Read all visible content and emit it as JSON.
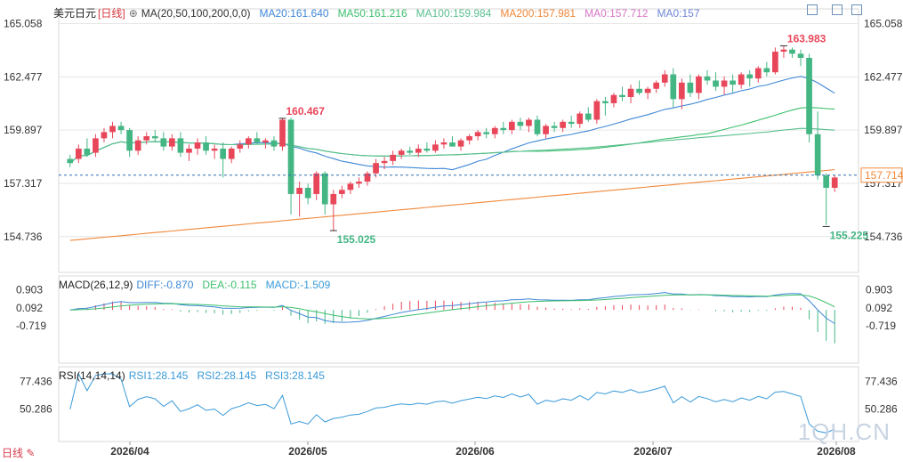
{
  "header": {
    "symbol": "美元日元",
    "period": "[日线]",
    "settings_glyph": "⊕",
    "ma_label": "MA(20,50,100,200,0,0)",
    "ma20": "MA20:161.640",
    "ma50": "MA50:161.216",
    "ma100": "MA100:159.984",
    "ma200": "MA200:157.981",
    "ma0a": "MA0:157.712",
    "ma0b": "MA0:157"
  },
  "macd_header": {
    "label": "MACD(26,12,9)",
    "diff": "DIFF:-0.870",
    "dea": "DEA:-0.115",
    "macd": "MACD:-1.509"
  },
  "rsi_header": {
    "label": "RSI(14,14,14)",
    "rsi1": "RSI1:28.145",
    "rsi2": "RSI2:28.145",
    "rsi3": "RSI3:28.145"
  },
  "timeframe_tab": "日线 ✎",
  "watermark": "1QH.CN",
  "colors": {
    "up": "#e8475a",
    "down": "#43b684",
    "ma20": "#3f88d6",
    "ma50": "#3cbf6d",
    "ma100": "#5bbf90",
    "ma200": "#f0883a",
    "rsi": "#3a9ad8",
    "diff": "#3f88d6",
    "dea": "#3cbf6d",
    "grid": "#e6e6e6",
    "axis_text": "#333333"
  },
  "chart_data": [
    {
      "type": "candlestick",
      "title": "美元日元 日线",
      "y_ticks": [
        165.058,
        162.477,
        159.897,
        157.317,
        154.736
      ],
      "ylim": [
        153.0,
        165.6
      ],
      "x_axis_labels": [
        "2026/04",
        "2026/05",
        "2026/06",
        "2026/07",
        "2026/08"
      ],
      "current_price": 157.714,
      "annotations": [
        {
          "text": "160.467",
          "value": 160.467
        },
        {
          "text": "163.983",
          "value": 163.983
        },
        {
          "text": "155.025",
          "value": 155.025
        },
        {
          "text": "155.225",
          "value": 155.225
        }
      ],
      "candles": [
        [
          158.5,
          158.7,
          158.1,
          158.3
        ],
        [
          158.5,
          159.2,
          158.3,
          159.0
        ],
        [
          159.0,
          159.5,
          158.6,
          158.7
        ],
        [
          158.8,
          159.7,
          158.6,
          159.5
        ],
        [
          159.5,
          160.0,
          159.3,
          159.8
        ],
        [
          159.8,
          160.3,
          159.5,
          160.1
        ],
        [
          160.1,
          160.3,
          159.7,
          159.9
        ],
        [
          159.9,
          160.0,
          158.6,
          158.9
        ],
        [
          158.9,
          159.6,
          158.7,
          159.4
        ],
        [
          159.4,
          159.8,
          159.2,
          159.6
        ],
        [
          159.6,
          159.9,
          159.3,
          159.5
        ],
        [
          159.5,
          159.8,
          158.9,
          159.1
        ],
        [
          159.1,
          159.7,
          158.9,
          159.5
        ],
        [
          159.5,
          159.8,
          158.6,
          158.8
        ],
        [
          158.8,
          159.2,
          158.4,
          159.0
        ],
        [
          159.0,
          159.5,
          158.7,
          159.3
        ],
        [
          159.3,
          159.6,
          158.7,
          158.9
        ],
        [
          158.9,
          159.2,
          158.5,
          159.0
        ],
        [
          159.0,
          159.3,
          157.6,
          158.5
        ],
        [
          158.5,
          159.1,
          158.3,
          159.0
        ],
        [
          159.0,
          159.4,
          158.8,
          159.2
        ],
        [
          159.2,
          159.6,
          159.0,
          159.5
        ],
        [
          159.5,
          159.8,
          159.2,
          159.3
        ],
        [
          159.3,
          159.5,
          159.0,
          159.4
        ],
        [
          159.4,
          159.6,
          158.9,
          159.1
        ],
        [
          159.1,
          160.5,
          158.9,
          160.4
        ],
        [
          160.4,
          160.5,
          155.8,
          156.8
        ],
        [
          156.8,
          157.4,
          155.7,
          157.1
        ],
        [
          157.1,
          157.3,
          156.3,
          156.6
        ],
        [
          156.8,
          157.9,
          156.5,
          157.8
        ],
        [
          157.8,
          157.9,
          155.8,
          156.3
        ],
        [
          156.3,
          157.0,
          155.0,
          156.8
        ],
        [
          156.8,
          157.2,
          156.6,
          157.0
        ],
        [
          157.0,
          157.4,
          156.8,
          157.3
        ],
        [
          157.3,
          157.6,
          157.1,
          157.4
        ],
        [
          157.4,
          157.9,
          157.2,
          157.8
        ],
        [
          157.8,
          158.5,
          157.6,
          158.3
        ],
        [
          158.3,
          158.6,
          158.0,
          158.4
        ],
        [
          158.4,
          158.9,
          158.2,
          158.7
        ],
        [
          158.7,
          159.0,
          158.5,
          158.9
        ],
        [
          158.9,
          159.1,
          158.7,
          158.8
        ],
        [
          158.8,
          159.2,
          158.6,
          159.0
        ],
        [
          159.0,
          159.3,
          158.8,
          158.9
        ],
        [
          158.9,
          159.4,
          158.8,
          159.2
        ],
        [
          159.2,
          159.5,
          159.0,
          159.3
        ],
        [
          159.3,
          159.6,
          159.1,
          159.1
        ],
        [
          159.1,
          159.5,
          158.9,
          159.4
        ],
        [
          159.4,
          159.7,
          159.2,
          159.6
        ],
        [
          159.6,
          159.9,
          159.4,
          159.8
        ],
        [
          159.8,
          160.0,
          159.5,
          159.7
        ],
        [
          159.7,
          160.1,
          159.5,
          160.0
        ],
        [
          160.0,
          160.3,
          159.7,
          159.9
        ],
        [
          159.9,
          160.4,
          159.7,
          160.3
        ],
        [
          160.3,
          160.5,
          159.9,
          160.1
        ],
        [
          160.1,
          160.5,
          159.8,
          160.4
        ],
        [
          160.4,
          160.6,
          159.6,
          159.7
        ],
        [
          159.7,
          160.2,
          159.5,
          160.1
        ],
        [
          160.1,
          160.3,
          159.8,
          160.0
        ],
        [
          160.0,
          160.4,
          159.8,
          160.3
        ],
        [
          160.3,
          160.6,
          160.0,
          160.2
        ],
        [
          160.2,
          160.8,
          160.0,
          160.7
        ],
        [
          160.7,
          161.0,
          160.3,
          160.4
        ],
        [
          160.4,
          161.4,
          160.2,
          161.3
        ],
        [
          161.3,
          161.5,
          160.6,
          161.2
        ],
        [
          161.2,
          161.7,
          161.0,
          161.6
        ],
        [
          161.6,
          162.0,
          161.3,
          161.5
        ],
        [
          161.5,
          162.1,
          161.2,
          161.9
        ],
        [
          161.9,
          162.3,
          161.6,
          161.7
        ],
        [
          161.7,
          162.0,
          161.4,
          161.9
        ],
        [
          161.9,
          162.3,
          161.7,
          162.2
        ],
        [
          162.2,
          162.8,
          162.0,
          162.6
        ],
        [
          162.6,
          162.9,
          161.0,
          161.4
        ],
        [
          161.4,
          162.4,
          160.9,
          162.2
        ],
        [
          162.2,
          162.6,
          161.5,
          161.7
        ],
        [
          161.7,
          162.6,
          161.4,
          162.5
        ],
        [
          162.5,
          162.8,
          162.1,
          162.3
        ],
        [
          162.3,
          162.7,
          161.8,
          162.0
        ],
        [
          162.0,
          162.5,
          161.6,
          162.3
        ],
        [
          162.3,
          162.6,
          161.7,
          162.1
        ],
        [
          162.1,
          162.7,
          161.9,
          162.6
        ],
        [
          162.6,
          162.8,
          162.0,
          162.4
        ],
        [
          162.4,
          163.0,
          162.2,
          162.9
        ],
        [
          162.9,
          163.2,
          162.5,
          162.7
        ],
        [
          162.7,
          163.9,
          162.6,
          163.7
        ],
        [
          163.7,
          164.0,
          163.4,
          163.8
        ],
        [
          163.8,
          163.9,
          163.4,
          163.6
        ],
        [
          163.6,
          163.8,
          163.0,
          163.4
        ],
        [
          163.4,
          163.6,
          159.3,
          159.7
        ],
        [
          159.7,
          160.8,
          157.5,
          157.7
        ],
        [
          157.7,
          157.8,
          155.3,
          157.1
        ],
        [
          157.1,
          157.7,
          156.9,
          157.6
        ]
      ]
    },
    {
      "type": "macd",
      "y_ticks": [
        0.903,
        0.092,
        -0.719
      ],
      "diff": -0.87,
      "dea": -0.115,
      "macd": -1.509
    },
    {
      "type": "rsi",
      "y_ticks": [
        77.436,
        50.286
      ],
      "rsi1": 28.145,
      "rsi2": 28.145,
      "rsi3": 28.145
    }
  ]
}
